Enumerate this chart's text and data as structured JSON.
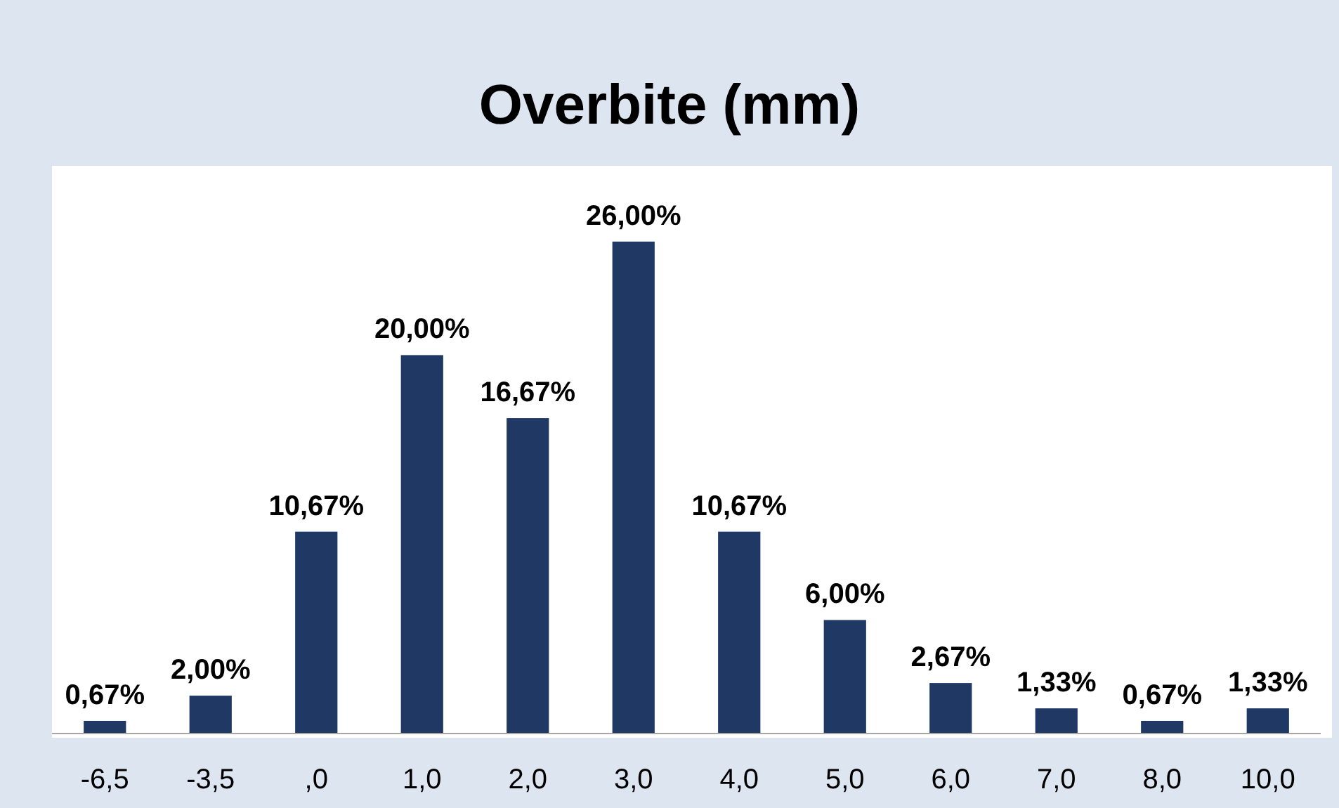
{
  "chart_data": {
    "type": "bar",
    "title": "Overbite (mm)",
    "categories": [
      "-6,5",
      "-3,5",
      ",0",
      "1,0",
      "2,0",
      "3,0",
      "4,0",
      "5,0",
      "6,0",
      "7,0",
      "8,0",
      "10,0"
    ],
    "values": [
      0.67,
      2.0,
      10.67,
      20.0,
      16.67,
      26.0,
      10.67,
      6.0,
      2.67,
      1.33,
      0.67,
      1.33
    ],
    "value_labels": [
      "0,67%",
      "2,00%",
      "10,67%",
      "20,00%",
      "16,67%",
      "26,00%",
      "10,67%",
      "6,00%",
      "2,67%",
      "1,33%",
      "0,67%",
      "1,33%"
    ],
    "color": "#1f3864"
  }
}
